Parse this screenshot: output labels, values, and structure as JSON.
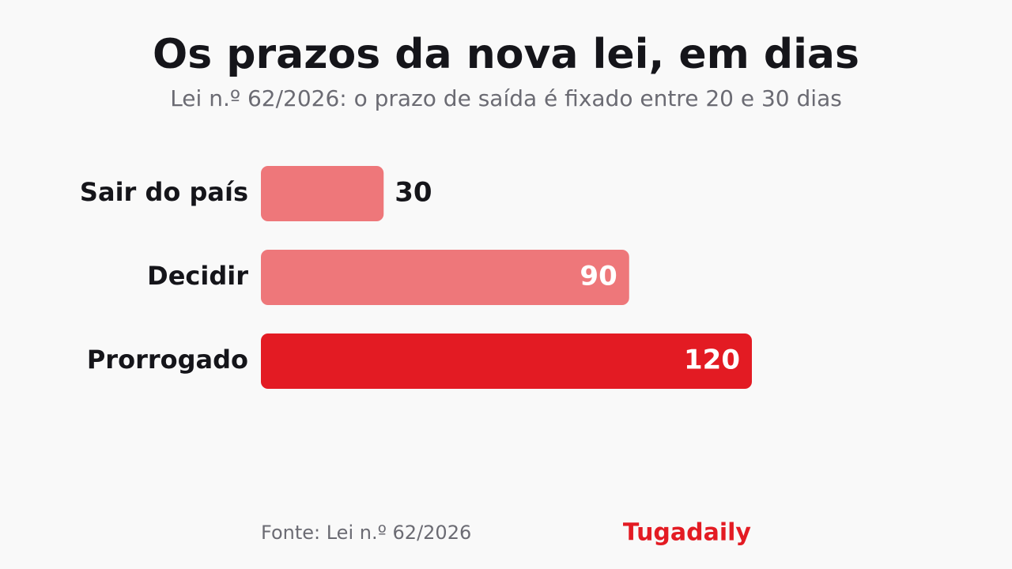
{
  "chart_data": {
    "type": "bar",
    "orientation": "horizontal",
    "title": "Os prazos da nova lei, em dias",
    "subtitle": "Lei n.º 62/2026: o prazo de saída é fixado entre 20 e 30 dias",
    "categories": [
      "Sair do país",
      "Decidir",
      "Prorrogado"
    ],
    "values": [
      30,
      90,
      120
    ],
    "colors": [
      "#ee777a",
      "#ee777a",
      "#e31b23"
    ],
    "source": "Fonte: Lei n.º 62/2026",
    "brand": "Tugadaily"
  }
}
